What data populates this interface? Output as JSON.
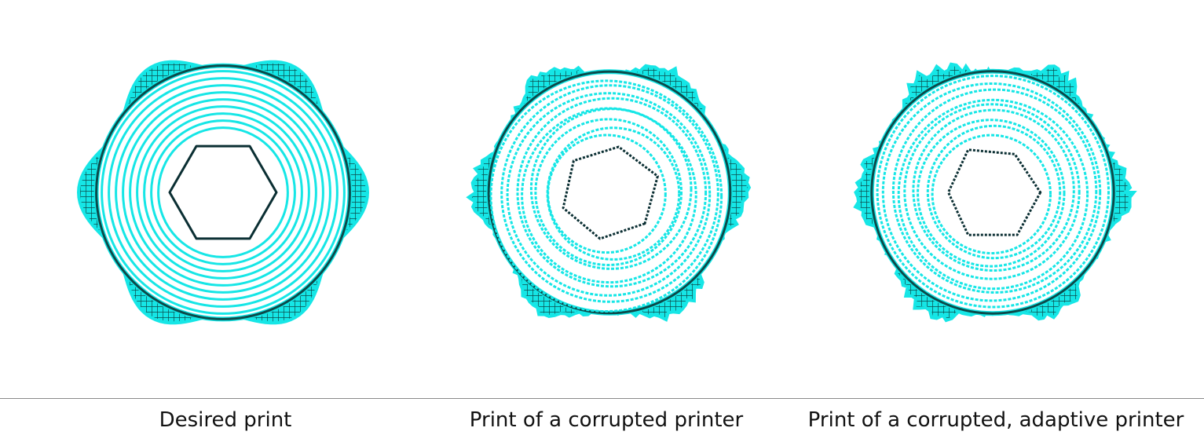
{
  "colors": {
    "fill": "#16e6e6",
    "dark": "#0c4a4a",
    "ink": "#0b2f33"
  },
  "panels": [
    {
      "caption": "Desired print"
    },
    {
      "caption": "Print of a corrupted printer"
    },
    {
      "caption": "Print of a corrupted, adaptive printer"
    }
  ]
}
